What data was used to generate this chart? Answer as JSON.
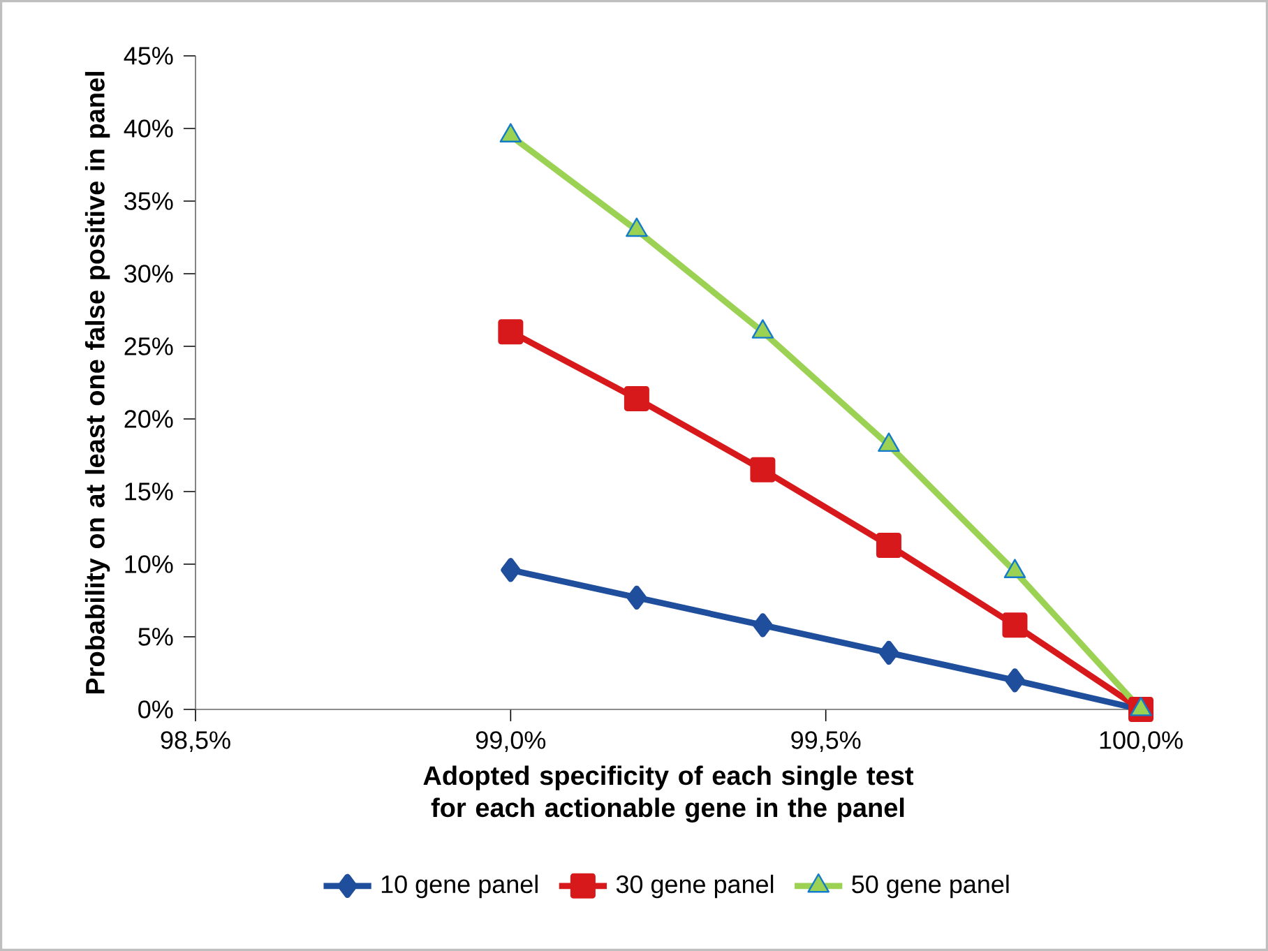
{
  "chart_data": {
    "type": "line",
    "xlabel": "Adopted specificity  of each single test for each actionable gene in the panel",
    "ylabel": "Probability on at least one false positive in panel",
    "x": [
      99.0,
      99.2,
      99.4,
      99.6,
      99.8,
      100.0
    ],
    "xlim": [
      98.5,
      100.0
    ],
    "xticks": [
      {
        "value": 98.5,
        "label": "98,5%"
      },
      {
        "value": 99.0,
        "label": "99,0%"
      },
      {
        "value": 99.5,
        "label": "99,5%"
      },
      {
        "value": 100.0,
        "label": "100,0%"
      }
    ],
    "ylim": [
      0,
      45
    ],
    "yticks": [
      {
        "value": 0,
        "label": "0%"
      },
      {
        "value": 5,
        "label": "5%"
      },
      {
        "value": 10,
        "label": "10%"
      },
      {
        "value": 15,
        "label": "15%"
      },
      {
        "value": 20,
        "label": "20%"
      },
      {
        "value": 25,
        "label": "25%"
      },
      {
        "value": 30,
        "label": "30%"
      },
      {
        "value": 35,
        "label": "35%"
      },
      {
        "value": 40,
        "label": "40%"
      },
      {
        "value": 45,
        "label": "45%"
      }
    ],
    "series": [
      {
        "name": "10 gene panel",
        "color": "#1f4e9c",
        "marker": "diamond",
        "values": [
          9.6,
          7.7,
          5.8,
          3.9,
          2.0,
          0
        ]
      },
      {
        "name": "30 gene panel",
        "color": "#d7191c",
        "marker": "square",
        "values": [
          26.0,
          21.4,
          16.5,
          11.3,
          5.8,
          0
        ]
      },
      {
        "name": "50 gene panel",
        "color": "#9bd253",
        "marker": "triangle",
        "values": [
          39.5,
          33.0,
          26.0,
          18.2,
          9.5,
          0
        ]
      }
    ],
    "grid": false,
    "legend": "bottom"
  }
}
